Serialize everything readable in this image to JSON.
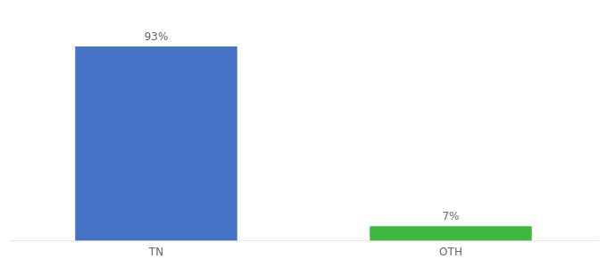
{
  "chart_data": {
    "type": "bar",
    "categories": [
      "TN",
      "OTH"
    ],
    "values": [
      93,
      7
    ],
    "value_labels": [
      "93%",
      "7%"
    ],
    "colors": [
      "#4472c4",
      "#3dba3d"
    ],
    "ylim": [
      0,
      105
    ],
    "grid": false,
    "data_labels": true,
    "tick_labels": "x"
  }
}
